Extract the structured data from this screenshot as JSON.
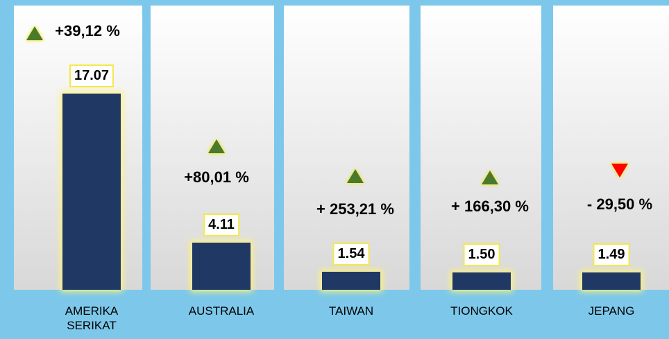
{
  "chart_data": {
    "type": "bar",
    "categories": [
      "AMERIKA SERIKAT",
      "AUSTRALIA",
      "TAIWAN",
      "TIONGKOK",
      "JEPANG"
    ],
    "values": [
      17.07,
      4.11,
      1.54,
      1.5,
      1.49
    ],
    "value_labels": [
      "17.07",
      "4.11",
      "1.54",
      "1.50",
      "1.49"
    ],
    "changes": [
      "+39,12 %",
      "+80,01 %",
      "+ 253,21 %",
      "+ 166,30 %",
      "- 29,50 %"
    ],
    "trend": [
      "up",
      "up",
      "up",
      "up",
      "down"
    ],
    "color": "#1f3864",
    "up_color": "#4a7a2c",
    "down_color": "#ff0000"
  }
}
